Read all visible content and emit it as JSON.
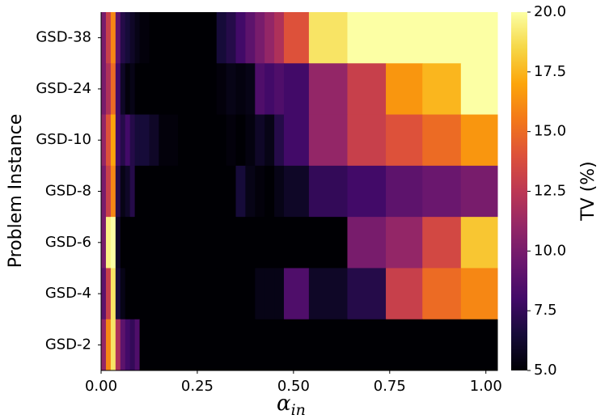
{
  "chart_data": {
    "type": "heatmap",
    "y_label": "Problem Instance",
    "x_label": "α",
    "x_label_sub": "in",
    "colorbar_label": "TV (%)",
    "colormap": "inferno",
    "clim": [
      5,
      20
    ],
    "cticks": [
      {
        "value": 5,
        "label": "5.0"
      },
      7.5,
      {
        "value": 10,
        "label": "10.0"
      },
      12.5,
      {
        "value": 15,
        "label": "15.0"
      },
      17.5,
      {
        "value": 20,
        "label": "20.0"
      }
    ],
    "xlim": [
      0,
      1.03
    ],
    "xticks": [
      {
        "value": 0,
        "label": "0.00"
      },
      0.25,
      {
        "value": 0.5,
        "label": "0.50"
      },
      0.75,
      {
        "value": 1,
        "label": "1.00"
      }
    ],
    "bins": [
      0,
      0.0125,
      0.025,
      0.0375,
      0.05,
      0.0625,
      0.075,
      0.0875,
      0.1,
      0.125,
      0.15,
      0.2,
      0.25,
      0.3,
      0.325,
      0.35,
      0.375,
      0.4,
      0.425,
      0.45,
      0.475,
      0.54,
      0.64,
      0.74,
      0.835,
      0.935,
      1.03
    ],
    "categories": [
      "GSD-38",
      "GSD-24",
      "GSD-10",
      "GSD-8",
      "GSD-6",
      "GSD-4",
      "GSD-2"
    ],
    "values": [
      [
        10,
        13,
        16,
        9,
        7,
        6.5,
        6,
        5.5,
        5.2,
        5,
        5,
        5,
        5,
        6.5,
        7,
        8,
        9,
        10,
        11,
        12,
        14,
        19,
        20,
        20,
        20,
        20
      ],
      [
        10,
        12,
        15,
        8,
        6,
        5.2,
        5.5,
        5,
        5,
        5,
        5,
        5,
        5,
        5.2,
        5.5,
        5.3,
        5.5,
        8.5,
        8,
        8.5,
        8,
        11,
        13,
        16.5,
        17.5,
        20
      ],
      [
        11,
        14,
        17,
        8,
        7,
        8,
        7,
        6.5,
        6.5,
        6,
        5.2,
        5,
        5,
        5,
        5.2,
        5,
        5.3,
        6,
        5.5,
        7,
        8,
        11,
        13,
        14,
        15,
        16.5
      ],
      [
        10,
        13,
        16,
        7,
        5.5,
        6,
        7,
        5,
        5,
        5,
        5,
        5,
        5,
        5,
        5,
        6.5,
        5.5,
        5.2,
        5,
        5.5,
        6,
        7.5,
        8,
        9,
        9.5,
        10
      ],
      [
        10,
        19.5,
        20,
        6,
        5,
        5,
        5,
        5,
        5,
        5,
        5,
        5,
        5,
        5,
        5,
        5,
        5,
        5,
        5,
        5,
        5,
        5,
        10,
        11,
        13.5,
        18
      ],
      [
        9,
        13,
        19,
        6.5,
        5.5,
        5,
        5,
        5,
        5,
        5,
        5,
        5,
        5,
        5,
        5,
        5,
        5,
        5.5,
        5.5,
        5.5,
        8.5,
        6,
        7,
        13,
        15,
        16
      ],
      [
        11,
        16,
        19,
        12,
        9,
        8,
        7.5,
        8.5,
        5,
        5,
        5,
        5,
        5,
        5,
        5,
        5,
        5,
        5,
        5,
        5,
        5,
        5,
        5,
        5,
        5,
        5
      ]
    ]
  }
}
